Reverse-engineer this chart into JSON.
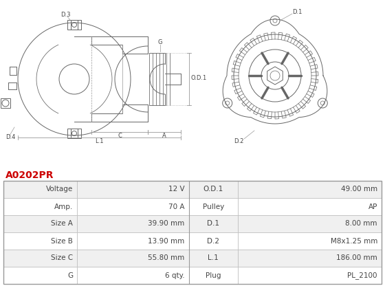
{
  "part_number": "A0202PR",
  "part_color": "#cc0000",
  "bg_color": "#ffffff",
  "table_row_bg1": "#f0f0f0",
  "table_row_bg2": "#ffffff",
  "table_border": "#bbbbbb",
  "rows": [
    [
      "Voltage",
      "12 V",
      "O.D.1",
      "49.00 mm"
    ],
    [
      "Amp.",
      "70 A",
      "Pulley",
      "AP"
    ],
    [
      "Size A",
      "39.90 mm",
      "D.1",
      "8.00 mm"
    ],
    [
      "Size B",
      "13.90 mm",
      "D.2",
      "M8x1.25 mm"
    ],
    [
      "Size C",
      "55.80 mm",
      "L.1",
      "186.00 mm"
    ],
    [
      "G",
      "6 qty.",
      "Plug",
      "PL_2100"
    ]
  ],
  "line_color": "#666666",
  "dim_line_color": "#999999",
  "label_color": "#444444"
}
